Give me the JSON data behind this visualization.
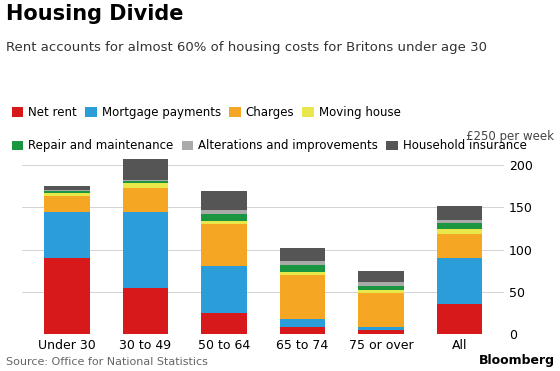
{
  "title": "Housing Divide",
  "subtitle": "Rent accounts for almost 60% of housing costs for Britons under age 30",
  "ylabel_annotation": "£250 per week",
  "source": "Source: Office for National Statistics",
  "categories": [
    "Under 30",
    "30 to 49",
    "50 to 64",
    "65 to 74",
    "75 or over",
    "All"
  ],
  "series": [
    {
      "name": "Net rent",
      "color": "#d7191c",
      "values": [
        90,
        55,
        25,
        8,
        5,
        35
      ]
    },
    {
      "name": "Mortgage payments",
      "color": "#2b9dd9",
      "values": [
        55,
        90,
        55,
        10,
        3,
        55
      ]
    },
    {
      "name": "Charges",
      "color": "#f5a623",
      "values": [
        18,
        28,
        50,
        52,
        40,
        28
      ]
    },
    {
      "name": "Moving house",
      "color": "#e8e84a",
      "values": [
        4,
        6,
        4,
        4,
        4,
        6
      ]
    },
    {
      "name": "Repair and maintenance",
      "color": "#1a9641",
      "values": [
        2,
        2,
        8,
        8,
        5,
        7
      ]
    },
    {
      "name": "Alterations and improvements",
      "color": "#aaaaaa",
      "values": [
        2,
        2,
        5,
        5,
        5,
        4
      ]
    },
    {
      "name": "Household insurance",
      "color": "#555555",
      "values": [
        4,
        25,
        22,
        15,
        13,
        17
      ]
    }
  ],
  "ylim": [
    0,
    220
  ],
  "yticks": [
    0,
    50,
    100,
    150,
    200
  ],
  "background_color": "#ffffff",
  "title_fontsize": 15,
  "subtitle_fontsize": 9.5,
  "tick_fontsize": 9,
  "legend_fontsize": 8.5
}
